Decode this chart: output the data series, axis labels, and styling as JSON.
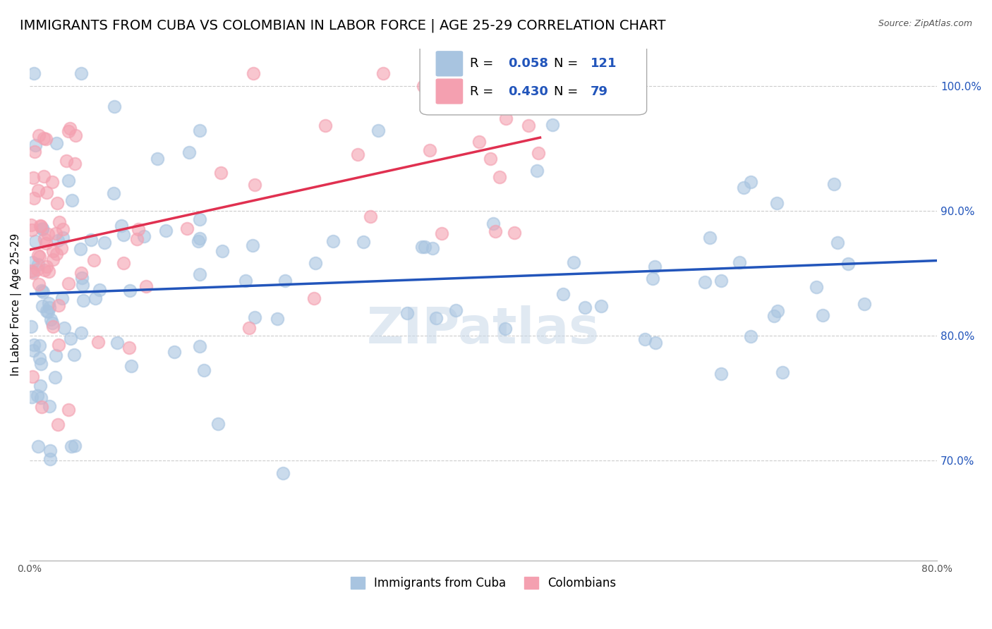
{
  "title": "IMMIGRANTS FROM CUBA VS COLOMBIAN IN LABOR FORCE | AGE 25-29 CORRELATION CHART",
  "source": "Source: ZipAtlas.com",
  "ylabel": "In Labor Force | Age 25-29",
  "ytick_labels": [
    "100.0%",
    "90.0%",
    "80.0%",
    "70.0%"
  ],
  "ytick_values": [
    1.0,
    0.9,
    0.8,
    0.7
  ],
  "xlim": [
    0.0,
    0.8
  ],
  "ylim": [
    0.62,
    1.03
  ],
  "cuba_R": 0.058,
  "cuba_N": 121,
  "colombia_R": 0.43,
  "colombia_N": 79,
  "cuba_color": "#a8c4e0",
  "colombia_color": "#f4a0b0",
  "cuba_line_color": "#2255bb",
  "colombia_line_color": "#e03050",
  "legend_text_color": "#2255bb",
  "grid_color": "#cccccc",
  "watermark": "ZIPatlas",
  "title_fontsize": 14,
  "axis_label_fontsize": 11,
  "tick_fontsize": 10,
  "legend_fontsize": 13
}
